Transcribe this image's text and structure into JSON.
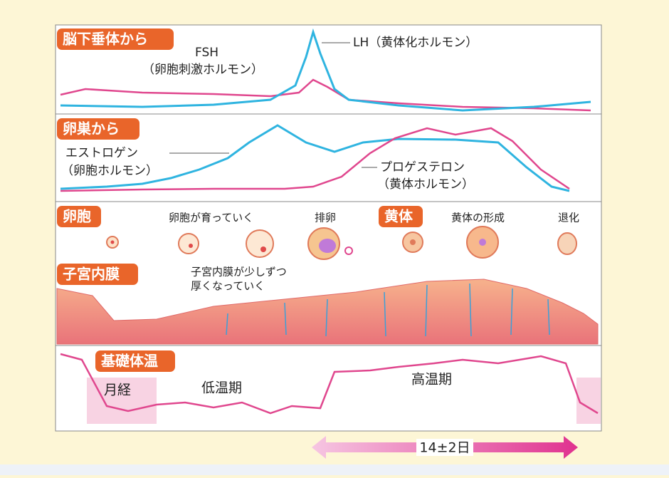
{
  "pituitary": {
    "label": "脳下垂体から",
    "fsh": "FSH",
    "fsh_sub": "（卵胞刺激ホルモン）",
    "lh": "LH（黄体化ホルモン）"
  },
  "ovary": {
    "label": "卵巣から",
    "estrogen": "エストロゲン",
    "estrogen_sub": "（卵胞ホルモン）",
    "progesterone": "プロゲステロン",
    "progesterone_sub": "（黄体ホルモン）"
  },
  "follicle": {
    "label": "卵胞",
    "growing": "卵胞が育っていく",
    "ovulation": "排卵",
    "corpus": "黄体",
    "corpus_forming": "黄体の形成",
    "regression": "退化"
  },
  "endometrium": {
    "label": "子宮内膜",
    "note_1": "子宮内膜が少しずつ",
    "note_2": "厚くなっていく"
  },
  "temperature": {
    "label": "基礎体温",
    "menses": "月経",
    "low": "低温期",
    "high": "高温期"
  },
  "span": "14±2日"
}
